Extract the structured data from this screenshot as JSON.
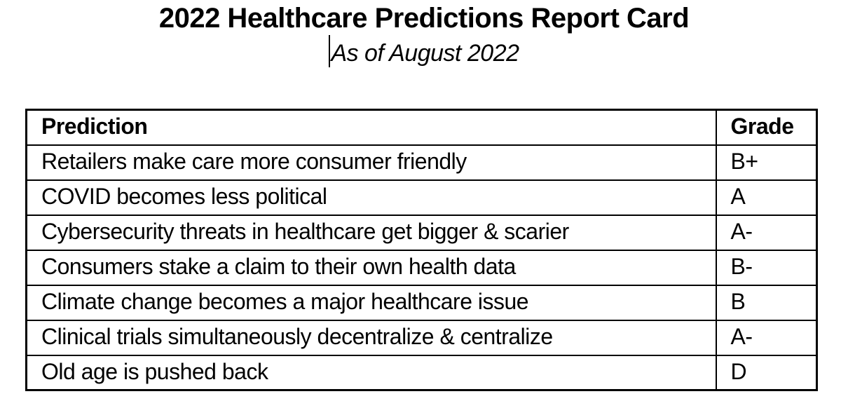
{
  "page": {
    "title": "2022 Healthcare Predictions Report Card",
    "subtitle": "As of August 2022"
  },
  "table": {
    "headers": [
      "Prediction",
      "Grade"
    ],
    "rows": [
      {
        "prediction": "Retailers make care more consumer friendly",
        "grade": "B+"
      },
      {
        "prediction": "COVID becomes less political",
        "grade": "A"
      },
      {
        "prediction": "Cybersecurity threats in healthcare get bigger & scarier",
        "grade": "A-"
      },
      {
        "prediction": "Consumers stake a claim to their own health data",
        "grade": "B-"
      },
      {
        "prediction": "Climate change becomes a major healthcare issue",
        "grade": "B"
      },
      {
        "prediction": "Clinical trials simultaneously decentralize & centralize",
        "grade": "A-"
      },
      {
        "prediction": "Old age is pushed back",
        "grade": "D"
      }
    ]
  },
  "colors": {
    "text": "#000000",
    "background": "#ffffff",
    "border": "#000000"
  }
}
